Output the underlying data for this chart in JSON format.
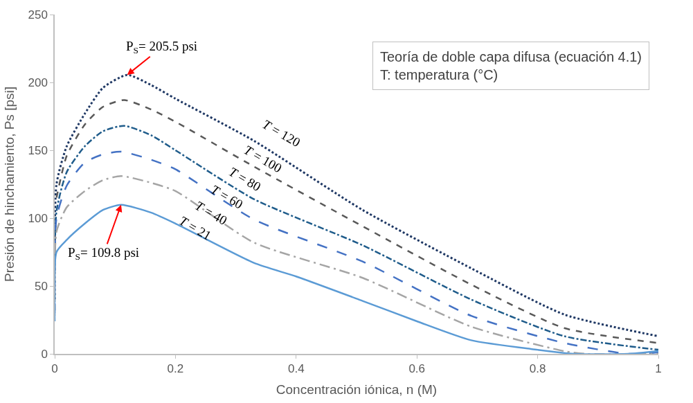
{
  "chart_data": {
    "type": "line",
    "xlabel": "Concentración iónica, n (M)",
    "ylabel": "Presión de hinchamiento, Ps [psi]",
    "xlim": [
      0,
      1
    ],
    "xticks": [
      0,
      0.2,
      0.4,
      0.6,
      0.8,
      1
    ],
    "ylim": [
      0,
      250
    ],
    "yticks": [
      0,
      50,
      100,
      150,
      200,
      250
    ],
    "marker": "none",
    "series": [
      {
        "color": "#1f3864",
        "line_style": "dotted",
        "x": [
          0,
          0.003,
          0.02,
          0.05,
          0.08,
          0.12,
          0.16,
          0.2,
          0.33,
          0.51,
          0.69,
          0.844,
          1
        ],
        "values": [
          40,
          125,
          153,
          177,
          196,
          205.5,
          198,
          188,
          157,
          106,
          63,
          29,
          13
        ]
      },
      {
        "color": "#595959",
        "line_style": "dashed",
        "x": [
          0.003,
          0.02,
          0.05,
          0.08,
          0.115,
          0.16,
          0.2,
          0.33,
          0.51,
          0.69,
          0.844,
          1
        ],
        "values": [
          115,
          146,
          169,
          182,
          187,
          180,
          171,
          138,
          94,
          51,
          19,
          8
        ]
      },
      {
        "color": "#1f5c8b",
        "line_style": "dashdot",
        "x": [
          0,
          0.003,
          0.02,
          0.05,
          0.08,
          0.115,
          0.16,
          0.2,
          0.33,
          0.51,
          0.69,
          0.844,
          1
        ],
        "values": [
          32,
          105,
          134,
          153,
          164,
          168,
          161,
          150,
          114,
          80,
          40,
          13,
          3
        ]
      },
      {
        "color": "#4472c4",
        "line_style": "longdash",
        "x": [
          0,
          0.003,
          0.02,
          0.05,
          0.08,
          0.11,
          0.16,
          0.2,
          0.33,
          0.51,
          0.69,
          0.844,
          0.95,
          1
        ],
        "values": [
          30,
          100,
          124,
          141,
          147,
          149,
          143,
          136,
          99,
          68,
          28,
          8,
          0,
          1
        ]
      },
      {
        "color": "#a5a5a5",
        "line_style": "longdashdot",
        "x": [
          0,
          0.003,
          0.02,
          0.05,
          0.08,
          0.11,
          0.16,
          0.2,
          0.33,
          0.51,
          0.69,
          0.844,
          0.88,
          1
        ],
        "values": [
          28,
          90,
          108,
          120,
          128,
          131,
          126,
          120,
          82,
          56,
          20,
          2,
          0,
          0
        ]
      },
      {
        "color": "#5b9bd5",
        "line_style": "solid",
        "x": [
          0,
          0.003,
          0.02,
          0.05,
          0.08,
          0.11,
          0.16,
          0.2,
          0.33,
          0.4,
          0.51,
          0.6,
          0.69,
          0.8,
          0.86,
          0.95,
          1
        ],
        "values": [
          24,
          75,
          84,
          96,
          106,
          109.8,
          104,
          96,
          67,
          57,
          39,
          24,
          10,
          3,
          0,
          0,
          2
        ]
      }
    ],
    "annotations": [
      {
        "text": "P$_{S}$= 205.5 psi",
        "x": 0.12,
        "y": 205.5
      },
      {
        "text": "P$_{S}$= 109.8 psi",
        "x": 0.11,
        "y": 109.8
      },
      "T = 120",
      "T = 100",
      "T = 80",
      "T = 60",
      "T = 40",
      "T = 21",
      "Teoría de doble capa difusa (ecuación 4.1)",
      "T: temperatura (°C)"
    ]
  }
}
